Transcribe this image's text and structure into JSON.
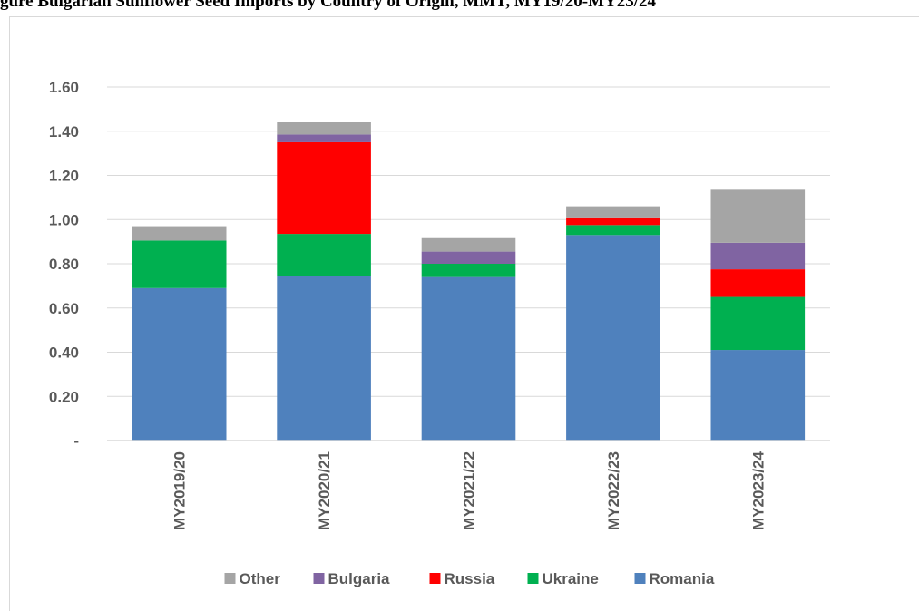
{
  "page_title": "gure  Bulgarian Sunflower Seed Imports by Country of Origin, MMT, MY19/20-MY23/24",
  "chart_data": {
    "type": "bar",
    "stacked": true,
    "categories": [
      "MY2019/20",
      "MY2020/21",
      "MY2021/22",
      "MY2022/23",
      "MY2023/24"
    ],
    "series": [
      {
        "name": "Romania",
        "color": "#4f81bd",
        "values": [
          0.69,
          0.745,
          0.74,
          0.93,
          0.41
        ]
      },
      {
        "name": "Ukraine",
        "color": "#00b050",
        "values": [
          0.215,
          0.19,
          0.06,
          0.045,
          0.24
        ]
      },
      {
        "name": "Russia",
        "color": "#ff0000",
        "values": [
          0.0,
          0.415,
          0.0,
          0.035,
          0.125
        ]
      },
      {
        "name": "Bulgaria",
        "color": "#8064a2",
        "values": [
          0.0,
          0.035,
          0.055,
          0.0,
          0.12
        ]
      },
      {
        "name": "Other",
        "color": "#a5a5a5",
        "values": [
          0.065,
          0.055,
          0.065,
          0.05,
          0.24
        ]
      }
    ],
    "yticks": [
      "-",
      "0.20",
      "0.40",
      "0.60",
      "0.80",
      "1.00",
      "1.20",
      "1.40",
      "1.60"
    ],
    "ylim": [
      0,
      1.6
    ],
    "grid": true,
    "legend_position": "bottom",
    "legend_order": [
      "Other",
      "Bulgaria",
      "Russia",
      "Ukraine",
      "Romania"
    ],
    "colors": {
      "grid": "#d9d9d9",
      "text": "#595959"
    }
  }
}
